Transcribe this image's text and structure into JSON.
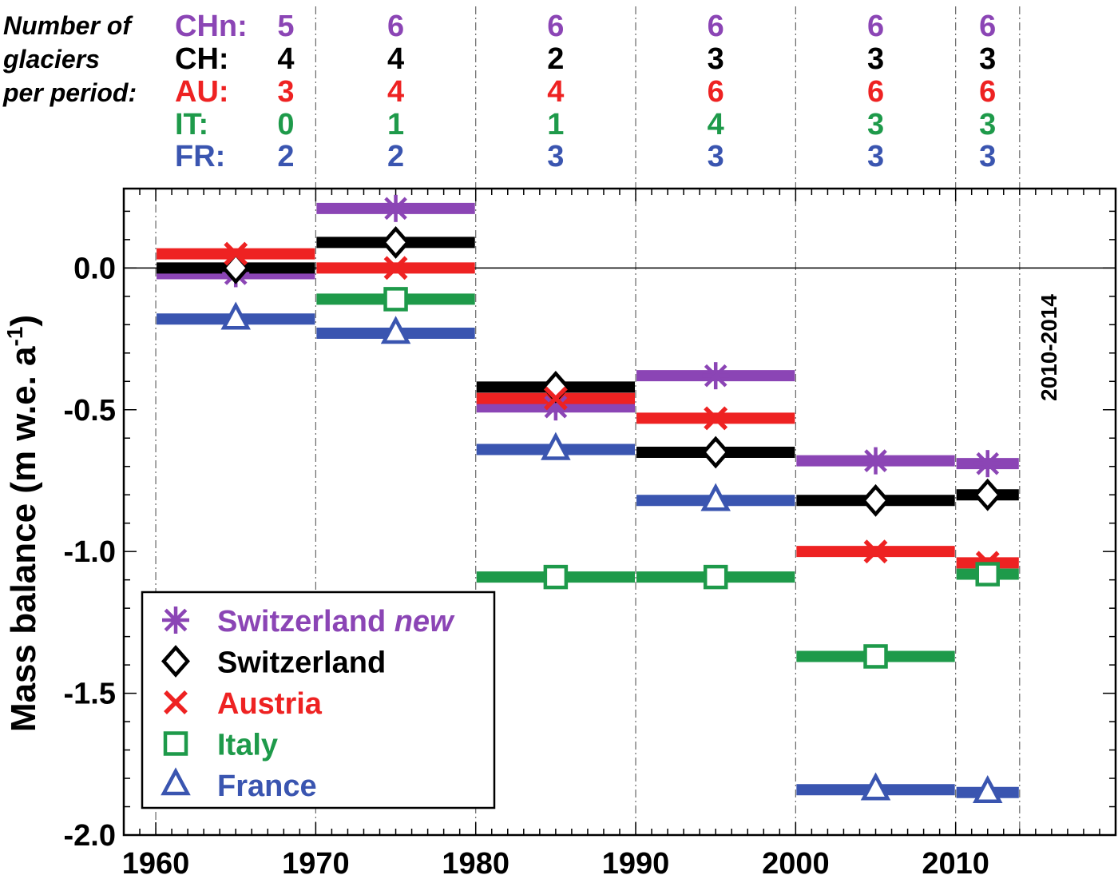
{
  "header": {
    "label_lines": [
      "Number of",
      "glaciers",
      "per period:"
    ],
    "count_rows": [
      {
        "code": "CHn:",
        "color": "#8b45b5",
        "counts": [
          "5",
          "6",
          "6",
          "6",
          "6",
          "6"
        ]
      },
      {
        "code": "CH:",
        "color": "#000000",
        "counts": [
          "4",
          "4",
          "2",
          "3",
          "3",
          "3"
        ]
      },
      {
        "code": "AU:",
        "color": "#ee2222",
        "counts": [
          "3",
          "4",
          "4",
          "6",
          "6",
          "6"
        ]
      },
      {
        "code": "IT:",
        "color": "#1e9a4a",
        "counts": [
          "0",
          "1",
          "1",
          "4",
          "3",
          "3"
        ]
      },
      {
        "code": "FR:",
        "color": "#3a55b0",
        "counts": [
          "2",
          "2",
          "3",
          "3",
          "3",
          "3"
        ]
      }
    ]
  },
  "chart_data": {
    "type": "line",
    "xlim": [
      1958,
      2020
    ],
    "ylim": [
      -2.0,
      0.28
    ],
    "xticks": [
      "1960",
      "1970",
      "1980",
      "1990",
      "2000",
      "2010"
    ],
    "yticks": [
      "0.0",
      "-0.5",
      "-1.0",
      "-1.5",
      "-2.0"
    ],
    "ylabel": "Mass balance (m w.e. a",
    "ylabel_sup": "-1",
    "ylabel_end": ")",
    "period_annotation": "2010-2014",
    "periods": [
      [
        1960,
        1970
      ],
      [
        1970,
        1980
      ],
      [
        1980,
        1990
      ],
      [
        1990,
        2000
      ],
      [
        2000,
        2010
      ],
      [
        2010,
        2014
      ]
    ],
    "series": [
      {
        "name": "Switzerland",
        "name_italic": "new",
        "marker": "asterisk",
        "color": "#8b45b5",
        "values": [
          -0.02,
          0.21,
          -0.49,
          -0.38,
          -0.68,
          -0.69
        ]
      },
      {
        "name": "Switzerland",
        "marker": "diamond",
        "color": "#000000",
        "values": [
          0.0,
          0.09,
          -0.42,
          -0.65,
          -0.82,
          -0.8
        ]
      },
      {
        "name": "Austria",
        "marker": "x",
        "color": "#ee2222",
        "values": [
          0.05,
          0.0,
          -0.46,
          -0.53,
          -1.0,
          -1.04
        ]
      },
      {
        "name": "Italy",
        "marker": "square",
        "color": "#1e9a4a",
        "values": [
          null,
          -0.11,
          -1.09,
          -1.09,
          -1.37,
          -1.08
        ]
      },
      {
        "name": "France",
        "marker": "triangle",
        "color": "#3a55b0",
        "values": [
          -0.18,
          -0.23,
          -0.64,
          -0.82,
          -1.84,
          -1.85
        ]
      }
    ],
    "legend_position": "bottom-left"
  }
}
